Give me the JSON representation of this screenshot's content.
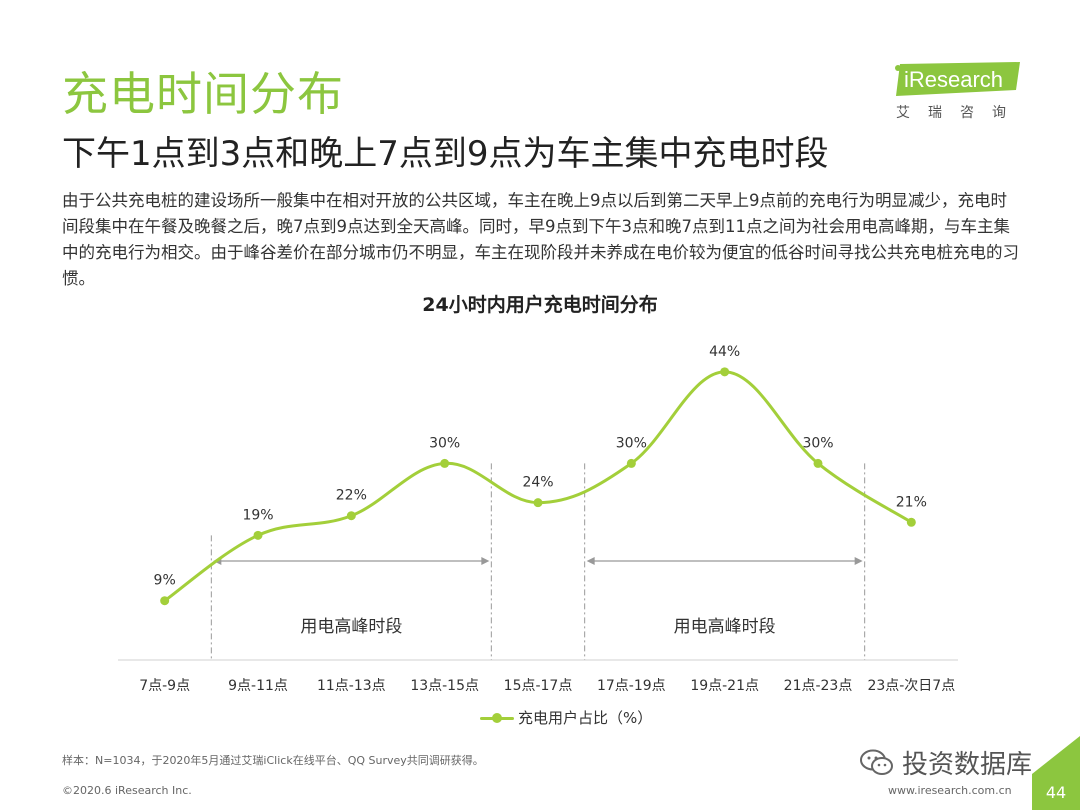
{
  "page": {
    "title": "充电时间分布",
    "subtitle": "下午1点到3点和晚上7点到9点为车主集中充电时段",
    "intro": "由于公共充电桩的建设场所一般集中在相对开放的公共区域，车主在晚上9点以后到第二天早上9点前的充电行为明显减少，充电时间段集中在午餐及晚餐之后，晚7点到9点达到全天高峰。同时，早9点到下午3点和晚7点到11点之间为社会用电高峰期，与车主集中的充电行为相交。由于峰谷差价在部分城市仍不明显，车主在现阶段并未养成在电价较为便宜的低谷时间寻找公共充电桩充电的习惯。",
    "footnote": "样本：N=1034，于2020年5月通过艾瑞iClick在线平台、QQ Survey共同调研获得。",
    "copyright": "©2020.6 iResearch Inc.",
    "site": "www.iresearch.com.cn",
    "page_number": "44"
  },
  "logo": {
    "brand": "iResearch",
    "tagline": "艾瑞咨询"
  },
  "wechat": {
    "label": "投资数据库",
    "icon": "wechat-icon"
  },
  "colors": {
    "accent": "#8cc63f",
    "series": "#a3cf3a",
    "grid": "#999999"
  },
  "chart_data": {
    "type": "line",
    "title": "24小时内用户充电时间分布",
    "categories": [
      "7点-9点",
      "9点-11点",
      "11点-13点",
      "13点-15点",
      "15点-17点",
      "17点-19点",
      "19点-21点",
      "21点-23点",
      "23点-次日7点"
    ],
    "series": [
      {
        "name": "充电用户占比（%）",
        "values": [
          9,
          19,
          22,
          30,
          24,
          30,
          44,
          30,
          21
        ]
      }
    ],
    "data_labels": [
      "9%",
      "19%",
      "22%",
      "30%",
      "24%",
      "30%",
      "44%",
      "30%",
      "21%"
    ],
    "annotations": [
      {
        "label": "用电高峰时段",
        "from": "9点-11点",
        "to": "13点-15点"
      },
      {
        "label": "用电高峰时段",
        "from": "17点-19点",
        "to": "21点-23点"
      }
    ],
    "ylim": [
      0,
      50
    ],
    "legend": "bottom"
  }
}
